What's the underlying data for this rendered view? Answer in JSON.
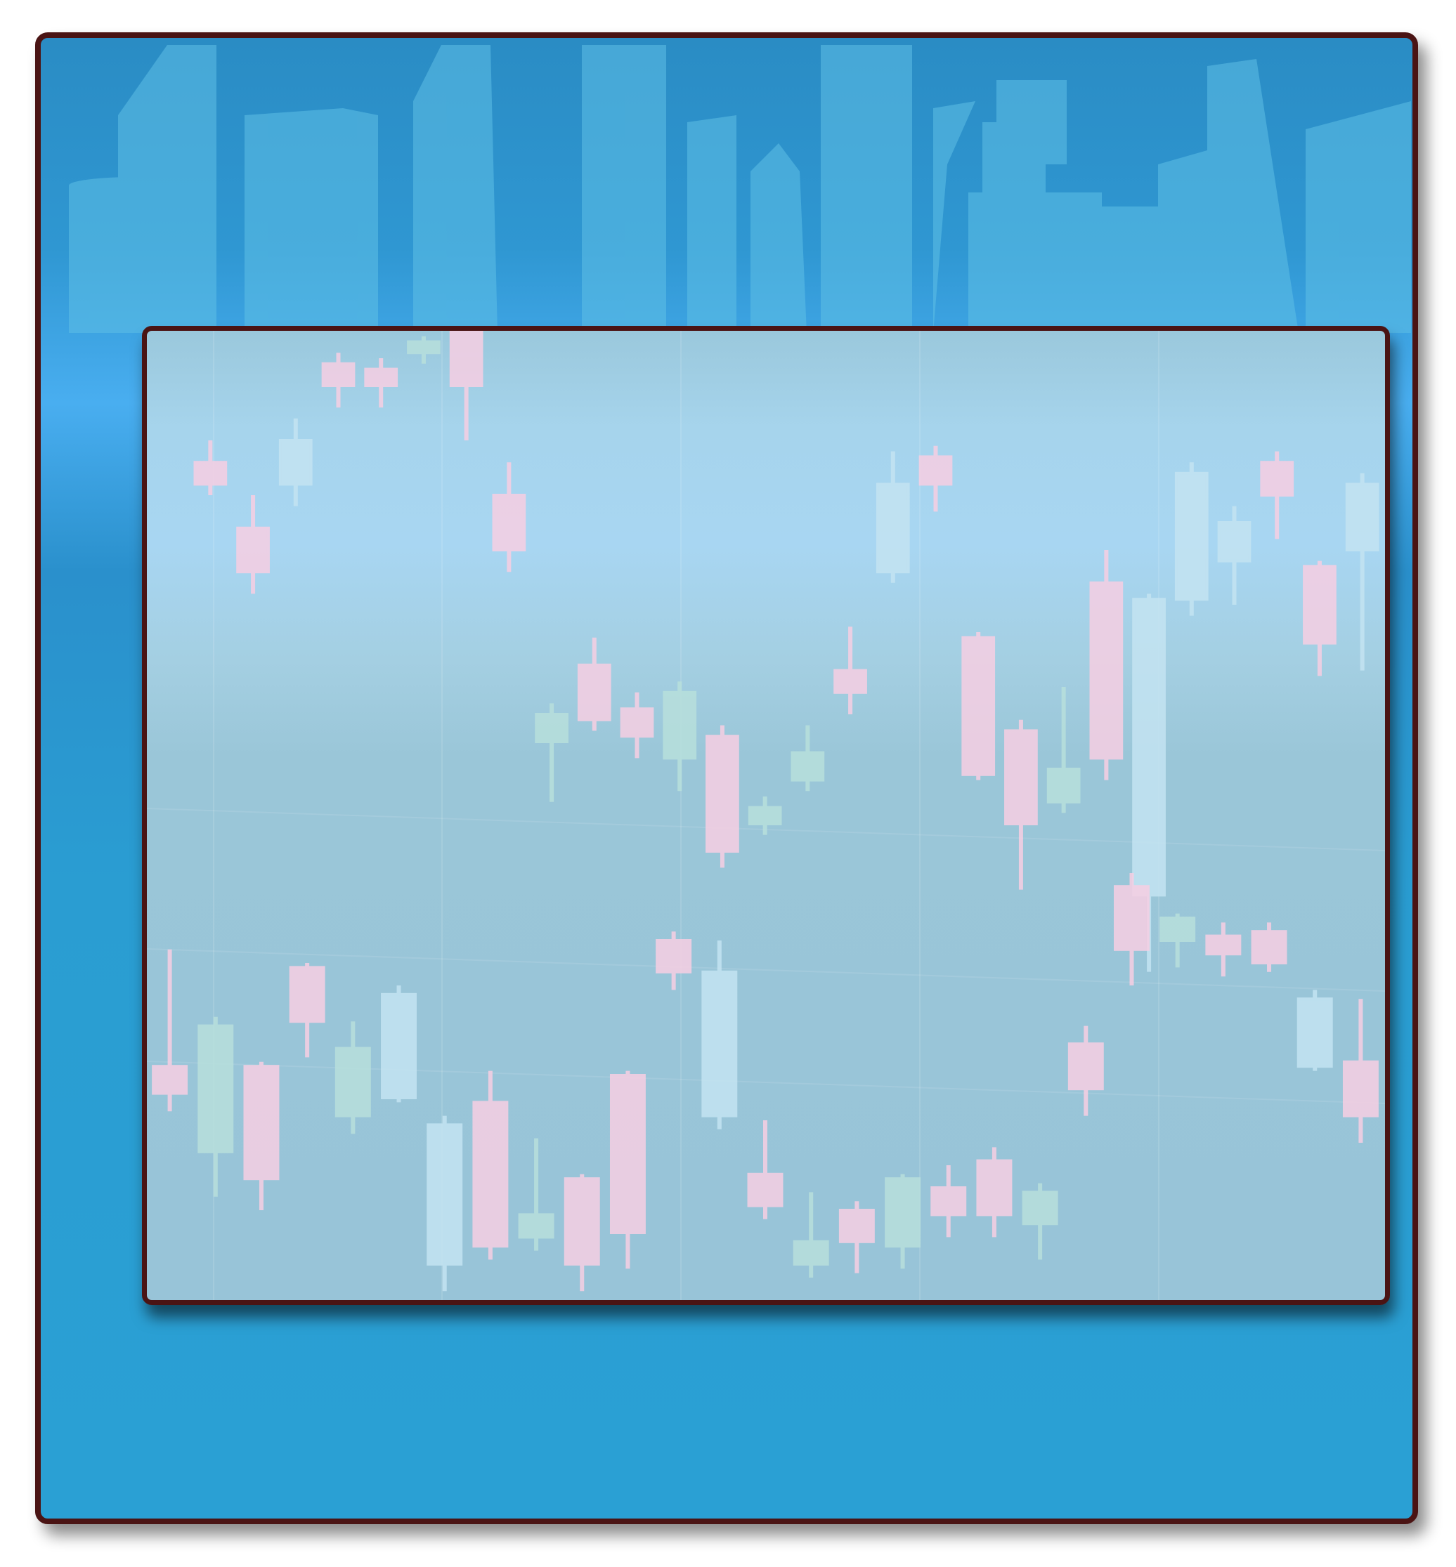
{
  "scene": {
    "background": "blue-city-skyline",
    "frame_color": "#4a1414",
    "panel": "blank-candlestick-backdrop"
  },
  "colors": {
    "bull": "#f7cfe3",
    "bear": "#b8e0dc",
    "pale": "#c4e4f2",
    "building": "#5fc0e6"
  },
  "chart_data": [
    {
      "type": "candlestick",
      "title": "",
      "xlabel": "",
      "ylabel": "",
      "ylim": [
        0,
        100
      ],
      "series": [
        {
          "name": "upper",
          "candles": [
            {
              "o": 76,
              "c": 72,
              "h": 80,
              "l": 70,
              "col": "bull"
            },
            {
              "o": 64,
              "c": 56,
              "h": 70,
              "l": 52,
              "col": "bull"
            },
            {
              "o": 72,
              "c": 80,
              "h": 84,
              "l": 68,
              "col": "pale"
            },
            {
              "o": 94,
              "c": 90,
              "h": 96,
              "l": 86,
              "col": "bull"
            },
            {
              "o": 93,
              "c": 90,
              "h": 95,
              "l": 86,
              "col": "bull"
            },
            {
              "o": 98,
              "c": 96,
              "h": 99,
              "l": 94,
              "col": "bear"
            },
            {
              "o": 100,
              "c": 90,
              "h": 101,
              "l": 80,
              "col": "bull"
            },
            {
              "o": 70,
              "c": 60,
              "h": 76,
              "l": 56,
              "col": "bull"
            },
            {
              "o": 25,
              "c": 30,
              "h": 32,
              "l": 14,
              "col": "bear"
            },
            {
              "o": 39,
              "c": 29,
              "h": 44,
              "l": 27,
              "col": "bull"
            },
            {
              "o": 31,
              "c": 26,
              "h": 34,
              "l": 22,
              "col": "bull"
            },
            {
              "o": 22,
              "c": 34,
              "h": 36,
              "l": 16,
              "col": "bear"
            },
            {
              "o": 26,
              "c": 5,
              "h": 28,
              "l": 2,
              "col": "bull"
            },
            {
              "o": 10,
              "c": 13,
              "h": 15,
              "l": 8,
              "col": "bear"
            },
            {
              "o": 18,
              "c": 23,
              "h": 28,
              "l": 16,
              "col": "bear"
            },
            {
              "o": 38,
              "c": 34,
              "h": 46,
              "l": 30,
              "col": "bull"
            },
            {
              "o": 56,
              "c": 72,
              "h": 78,
              "l": 54,
              "col": "pale"
            },
            {
              "o": 72,
              "c": 77,
              "h": 79,
              "l": 67,
              "col": "bull"
            },
            {
              "o": 44,
              "c": 19,
              "h": 45,
              "l": 18,
              "col": "bull"
            },
            {
              "o": 27,
              "c": 10,
              "h": 29,
              "l": -2,
              "col": "bull"
            },
            {
              "o": 20,
              "c": 14,
              "h": 35,
              "l": 12,
              "col": "bear"
            },
            {
              "o": 54,
              "c": 22,
              "h": 60,
              "l": 18,
              "col": "bull"
            },
            {
              "o": 51,
              "c": -3,
              "h": 52,
              "l": -17,
              "col": "pale"
            },
            {
              "o": 74,
              "c": 51,
              "h": 76,
              "l": 48,
              "col": "pale"
            },
            {
              "o": 65,
              "c": 58,
              "h": 68,
              "l": 50,
              "col": "pale"
            },
            {
              "o": 70,
              "c": 76,
              "h": 78,
              "l": 62,
              "col": "bull"
            },
            {
              "o": 57,
              "c": 43,
              "h": 58,
              "l": 37,
              "col": "bull"
            },
            {
              "o": 60,
              "c": 72,
              "h": 74,
              "l": 38,
              "col": "pale"
            }
          ]
        },
        {
          "name": "lower",
          "candles": [
            {
              "o": 52,
              "c": 46,
              "h": 78,
              "l": 42,
              "col": "bull"
            },
            {
              "o": 33,
              "c": 61,
              "h": 63,
              "l": 23,
              "col": "bear"
            },
            {
              "o": 27,
              "c": 52,
              "h": 53,
              "l": 20,
              "col": "bull"
            },
            {
              "o": 74,
              "c": 62,
              "h": 75,
              "l": 54,
              "col": "bull"
            },
            {
              "o": 41,
              "c": 56,
              "h": 62,
              "l": 37,
              "col": "bear"
            },
            {
              "o": 45,
              "c": 68,
              "h": 70,
              "l": 44,
              "col": "pale"
            },
            {
              "o": 8,
              "c": 39,
              "h": 41,
              "l": 2,
              "col": "pale"
            },
            {
              "o": 12,
              "c": 44,
              "h": 51,
              "l": 9,
              "col": "bull"
            },
            {
              "o": 14,
              "c": 19,
              "h": 36,
              "l": 11,
              "col": "bear"
            },
            {
              "o": 8,
              "c": 27,
              "h": 28,
              "l": 2,
              "col": "bull"
            },
            {
              "o": 15,
              "c": 50,
              "h": 51,
              "l": 7,
              "col": "bull"
            },
            {
              "o": 80,
              "c": 73,
              "h": 82,
              "l": 69,
              "col": "bull"
            },
            {
              "o": 41,
              "c": 73,
              "h": 80,
              "l": 38,
              "col": "pale"
            },
            {
              "o": 28,
              "c": 21,
              "h": 40,
              "l": 18,
              "col": "bull"
            },
            {
              "o": 13,
              "c": 8,
              "h": 24,
              "l": 5,
              "col": "bear"
            },
            {
              "o": 20,
              "c": 13,
              "h": 22,
              "l": 6,
              "col": "bull"
            },
            {
              "o": 12,
              "c": 27,
              "h": 28,
              "l": 7,
              "col": "bear"
            },
            {
              "o": 25,
              "c": 19,
              "h": 30,
              "l": 14,
              "col": "bull"
            },
            {
              "o": 31,
              "c": 19,
              "h": 34,
              "l": 14,
              "col": "bull"
            },
            {
              "o": 17,
              "c": 24,
              "h": 26,
              "l": 9,
              "col": "bear"
            },
            {
              "o": 57,
              "c": 47,
              "h": 61,
              "l": 41,
              "col": "bull"
            },
            {
              "o": 92,
              "c": 78,
              "h": 95,
              "l": 70,
              "col": "bull"
            },
            {
              "o": 85,
              "c": 80,
              "h": 86,
              "l": 74,
              "col": "bear"
            },
            {
              "o": 81,
              "c": 77,
              "h": 84,
              "l": 72,
              "col": "bull"
            },
            {
              "o": 82,
              "c": 75,
              "h": 84,
              "l": 73,
              "col": "bull"
            },
            {
              "o": 67,
              "c": 52,
              "h": 69,
              "l": 51,
              "col": "pale"
            },
            {
              "o": 53,
              "c": 41,
              "h": 67,
              "l": 35,
              "col": "bull"
            }
          ]
        }
      ]
    }
  ]
}
